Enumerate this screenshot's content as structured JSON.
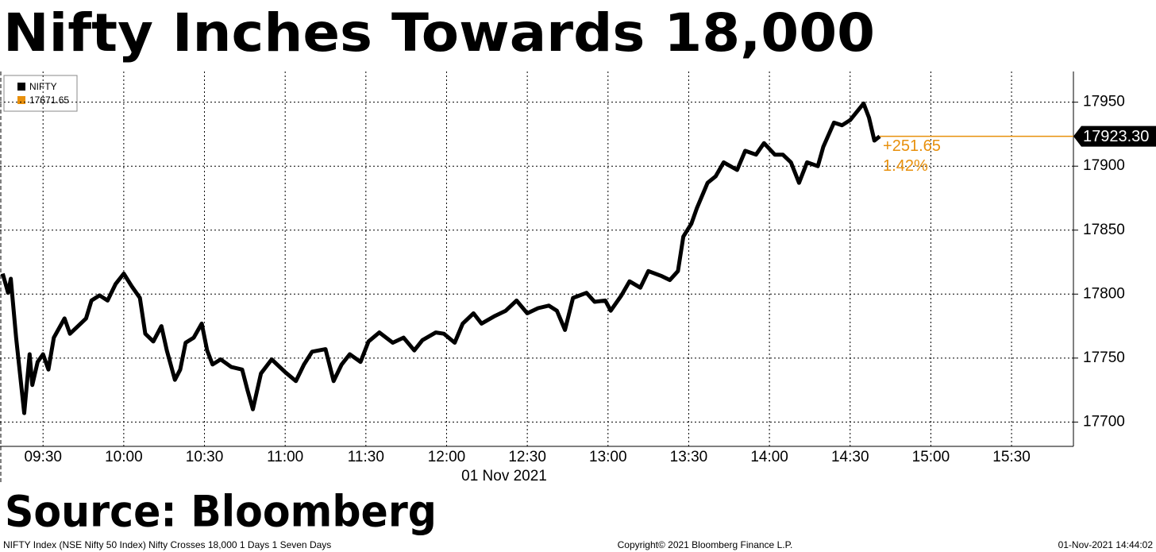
{
  "chart_data": {
    "type": "line",
    "title": "Nifty Inches Towards 18,000",
    "x_label": "01 Nov 2021",
    "source": "Source: Bloomberg",
    "footer_left": "NIFTY Index (NSE Nifty 50 Index) Nifty Crosses 18,000 1 Days 1 Seven Days",
    "footer_center": "Copyright© 2021 Bloomberg Finance L.P.",
    "footer_right": "01-Nov-2021 14:44:02",
    "series": [
      {
        "name": "NIFTY",
        "color": "#000000",
        "x": [
          555,
          557,
          558,
          560,
          563,
          565,
          566,
          568,
          570,
          572,
          574,
          578,
          580,
          583,
          586,
          588,
          591,
          594,
          597,
          600,
          603,
          606,
          608,
          611,
          614,
          616,
          619,
          621,
          623,
          626,
          629,
          631,
          633,
          636,
          640,
          644,
          646,
          648,
          651,
          655,
          660,
          664,
          667,
          670,
          675,
          678,
          681,
          684,
          688,
          691,
          695,
          700,
          704,
          708,
          711,
          716,
          719,
          723,
          726,
          730,
          733,
          738,
          742,
          746,
          750,
          754,
          758,
          761,
          764,
          767,
          772,
          775,
          779,
          781,
          785,
          788,
          792,
          795,
          800,
          803,
          806,
          808,
          811,
          813,
          817,
          820,
          823,
          828,
          831,
          835,
          838,
          842,
          845,
          848,
          851,
          854,
          858,
          860,
          864,
          867,
          870,
          875,
          877,
          879,
          881
        ],
        "values": [
          17816,
          17801,
          17812,
          17766,
          17707,
          17753,
          17729,
          17747,
          17753,
          17741,
          17766,
          17781,
          17769,
          17775,
          17781,
          17795,
          17799,
          17795,
          17808,
          17816,
          17806,
          17797,
          17769,
          17763,
          17775,
          17756,
          17733,
          17741,
          17762,
          17766,
          17777,
          17756,
          17745,
          17749,
          17743,
          17741,
          17725,
          17710,
          17738,
          17749,
          17739,
          17732,
          17745,
          17755,
          17757,
          17732,
          17745,
          17753,
          17747,
          17763,
          17770,
          17762,
          17766,
          17756,
          17764,
          17770,
          17769,
          17762,
          17777,
          17785,
          17777,
          17783,
          17787,
          17795,
          17785,
          17789,
          17791,
          17787,
          17772,
          17797,
          17801,
          17794,
          17795,
          17787,
          17799,
          17810,
          17805,
          17818,
          17814,
          17811,
          17818,
          17845,
          17855,
          17867,
          17887,
          17892,
          17903,
          17897,
          17912,
          17909,
          17918,
          17909,
          17909,
          17903,
          17887,
          17903,
          17900,
          17915,
          17934,
          17932,
          17936,
          17949,
          17938,
          17920,
          17923.3
        ]
      }
    ],
    "last": {
      "value": 17923.3,
      "label": "17923.30",
      "color": "#e8900c"
    },
    "legend_value": "17671.65",
    "change": "+251.65",
    "change_pct": "1.42%",
    "xlim": [
      554,
      953
    ],
    "xticks": [
      {
        "value": 570,
        "label": "09:30"
      },
      {
        "value": 600,
        "label": "10:00"
      },
      {
        "value": 630,
        "label": "10:30"
      },
      {
        "value": 660,
        "label": "11:00"
      },
      {
        "value": 690,
        "label": "11:30"
      },
      {
        "value": 720,
        "label": "12:00"
      },
      {
        "value": 750,
        "label": "12:30"
      },
      {
        "value": 780,
        "label": "13:00"
      },
      {
        "value": 810,
        "label": "13:30"
      },
      {
        "value": 840,
        "label": "14:00"
      },
      {
        "value": 870,
        "label": "14:30"
      },
      {
        "value": 900,
        "label": "15:00"
      },
      {
        "value": 930,
        "label": "15:30"
      }
    ],
    "ylim": [
      17681,
      17974
    ],
    "yticks": [
      17700,
      17750,
      17800,
      17850,
      17900,
      17950
    ],
    "grid": true
  }
}
